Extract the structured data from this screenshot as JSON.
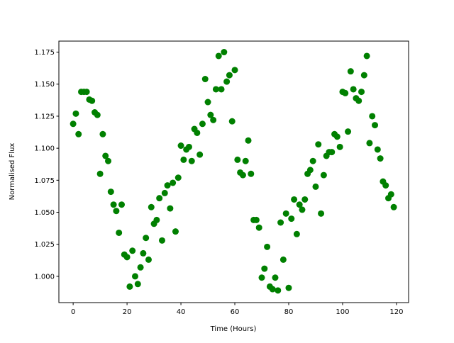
{
  "chart_data": {
    "type": "scatter",
    "title": "",
    "xlabel": "Time (Hours)",
    "ylabel": "Normalised Flux",
    "xlim": [
      -5.3,
      124.5
    ],
    "ylim": [
      0.9795,
      1.1836
    ],
    "xticks": [
      0,
      20,
      40,
      60,
      80,
      100,
      120
    ],
    "xtick_labels": [
      "0",
      "20",
      "40",
      "60",
      "80",
      "100",
      "120"
    ],
    "yticks": [
      1.0,
      1.025,
      1.05,
      1.075,
      1.1,
      1.125,
      1.15,
      1.175
    ],
    "ytick_labels": [
      "1.000",
      "1.025",
      "1.050",
      "1.075",
      "1.100",
      "1.125",
      "1.150",
      "1.175"
    ],
    "grid": false,
    "marker_color": "#008000",
    "x": [
      0,
      1,
      2,
      3,
      4,
      5,
      6,
      7,
      8,
      9,
      10,
      11,
      12,
      13,
      14,
      15,
      16,
      17,
      18,
      19,
      20,
      21,
      22,
      23,
      24,
      25,
      26,
      27,
      28,
      29,
      30,
      31,
      32,
      33,
      34,
      35,
      36,
      37,
      38,
      39,
      40,
      41,
      42,
      43,
      44,
      45,
      46,
      47,
      48,
      49,
      50,
      51,
      52,
      53,
      54,
      55,
      56,
      57,
      58,
      59,
      60,
      61,
      62,
      63,
      64,
      65,
      66,
      67,
      68,
      69,
      70,
      71,
      72,
      73,
      74,
      75,
      76,
      77,
      78,
      79,
      80,
      81,
      82,
      83,
      84,
      85,
      86,
      87,
      88,
      89,
      90,
      91,
      92,
      93,
      94,
      95,
      96,
      97,
      98,
      99,
      100,
      101,
      102,
      103,
      104,
      105,
      106,
      107,
      108,
      109,
      110,
      111,
      112,
      113,
      114,
      115,
      116,
      117,
      118,
      119
    ],
    "y": [
      1.119,
      1.127,
      1.111,
      1.144,
      1.144,
      1.144,
      1.138,
      1.137,
      1.128,
      1.126,
      1.08,
      1.111,
      1.094,
      1.09,
      1.066,
      1.056,
      1.051,
      1.034,
      1.056,
      1.017,
      1.015,
      0.992,
      1.02,
      1.0,
      0.994,
      1.007,
      1.018,
      1.03,
      1.013,
      1.054,
      1.041,
      1.044,
      1.061,
      1.028,
      1.065,
      1.071,
      1.053,
      1.073,
      1.035,
      1.077,
      1.102,
      1.091,
      1.099,
      1.101,
      1.09,
      1.115,
      1.112,
      1.095,
      1.119,
      1.154,
      1.136,
      1.126,
      1.122,
      1.146,
      1.172,
      1.146,
      1.175,
      1.152,
      1.157,
      1.121,
      1.161,
      1.091,
      1.081,
      1.079,
      1.09,
      1.106,
      1.08,
      1.044,
      1.044,
      1.038,
      0.999,
      1.006,
      1.023,
      0.992,
      0.99,
      0.999,
      0.989,
      1.042,
      1.013,
      1.049,
      0.991,
      1.045,
      1.06,
      1.033,
      1.056,
      1.052,
      1.06,
      1.08,
      1.083,
      1.09,
      1.07,
      1.103,
      1.049,
      1.079,
      1.094,
      1.097,
      1.097,
      1.111,
      1.109,
      1.101,
      1.144,
      1.143,
      1.113,
      1.16,
      1.146,
      1.139,
      1.137,
      1.144,
      1.157,
      1.172,
      1.104,
      1.125,
      1.118,
      1.099,
      1.092,
      1.074,
      1.071,
      1.061,
      1.064,
      1.054
    ]
  }
}
